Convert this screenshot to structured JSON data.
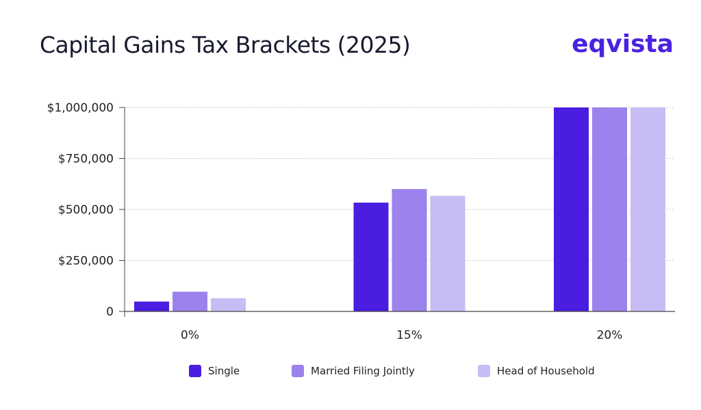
{
  "header": {
    "title": "Capital Gains Tax Brackets (2025)",
    "logo_text": "eqvista"
  },
  "colors": {
    "brand": "#4a22e0",
    "series": [
      "#4a1de0",
      "#9b82ec",
      "#c8bcf4"
    ],
    "grid": "#c9c9c9",
    "axis": "#444444"
  },
  "chart_data": {
    "type": "bar",
    "categories": [
      "0%",
      "15%",
      "20%"
    ],
    "series": [
      {
        "name": "Single",
        "values": [
          48350,
          533400,
          1000000
        ]
      },
      {
        "name": "Married Filing Jointly",
        "values": [
          96700,
          600050,
          1000000
        ]
      },
      {
        "name": "Head of Household",
        "values": [
          64750,
          566700,
          1000000
        ]
      }
    ],
    "yticks": [
      {
        "value": 0,
        "label": "0"
      },
      {
        "value": 250000,
        "label": "$250,000"
      },
      {
        "value": 500000,
        "label": "$500,000"
      },
      {
        "value": 750000,
        "label": "$750,000"
      },
      {
        "value": 1000000,
        "label": "$1,000,000"
      }
    ],
    "ylim": [
      0,
      1000000
    ],
    "grid": true,
    "legend_position": "bottom"
  }
}
